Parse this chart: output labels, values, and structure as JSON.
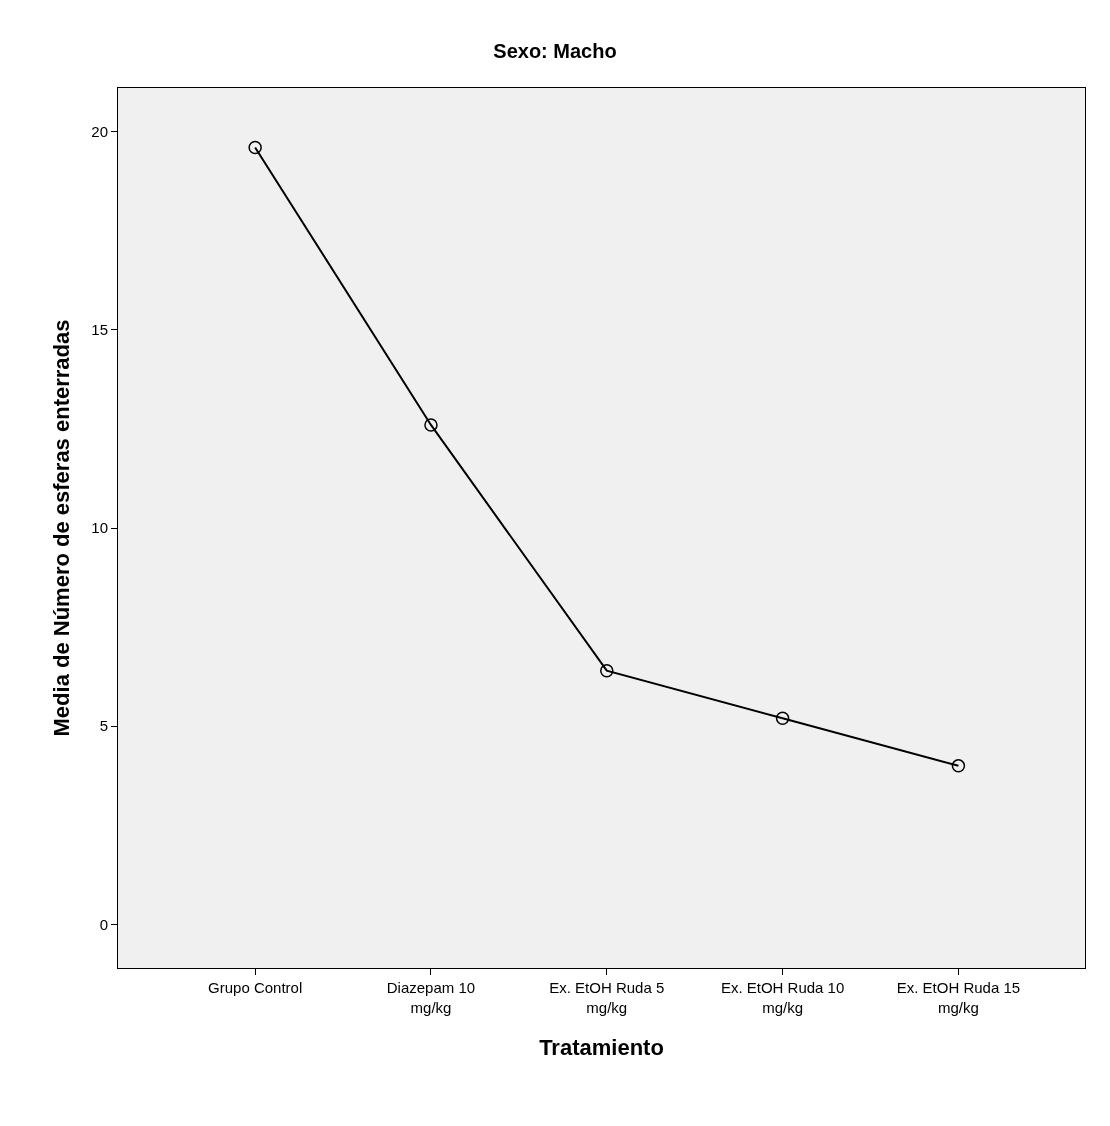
{
  "chart_data": {
    "type": "line",
    "title": "Sexo: Macho",
    "xlabel": "Tratamiento",
    "ylabel": "Media de Número de esferas enterradas",
    "categories": [
      "Grupo Control",
      "Diazepam 10 mg/kg",
      "Ex. EtOH Ruda 5 mg/kg",
      "Ex. EtOH Ruda 10 mg/kg",
      "Ex. EtOH Ruda 15 mg/kg"
    ],
    "values": [
      19.6,
      12.6,
      6.4,
      5.2,
      4.0
    ],
    "color": "#000000",
    "marker": "circle",
    "line_style": "solid",
    "ylim": [
      -1.1,
      21.1
    ],
    "yticks": [
      0,
      5,
      10,
      15,
      20
    ],
    "grid": false
  }
}
